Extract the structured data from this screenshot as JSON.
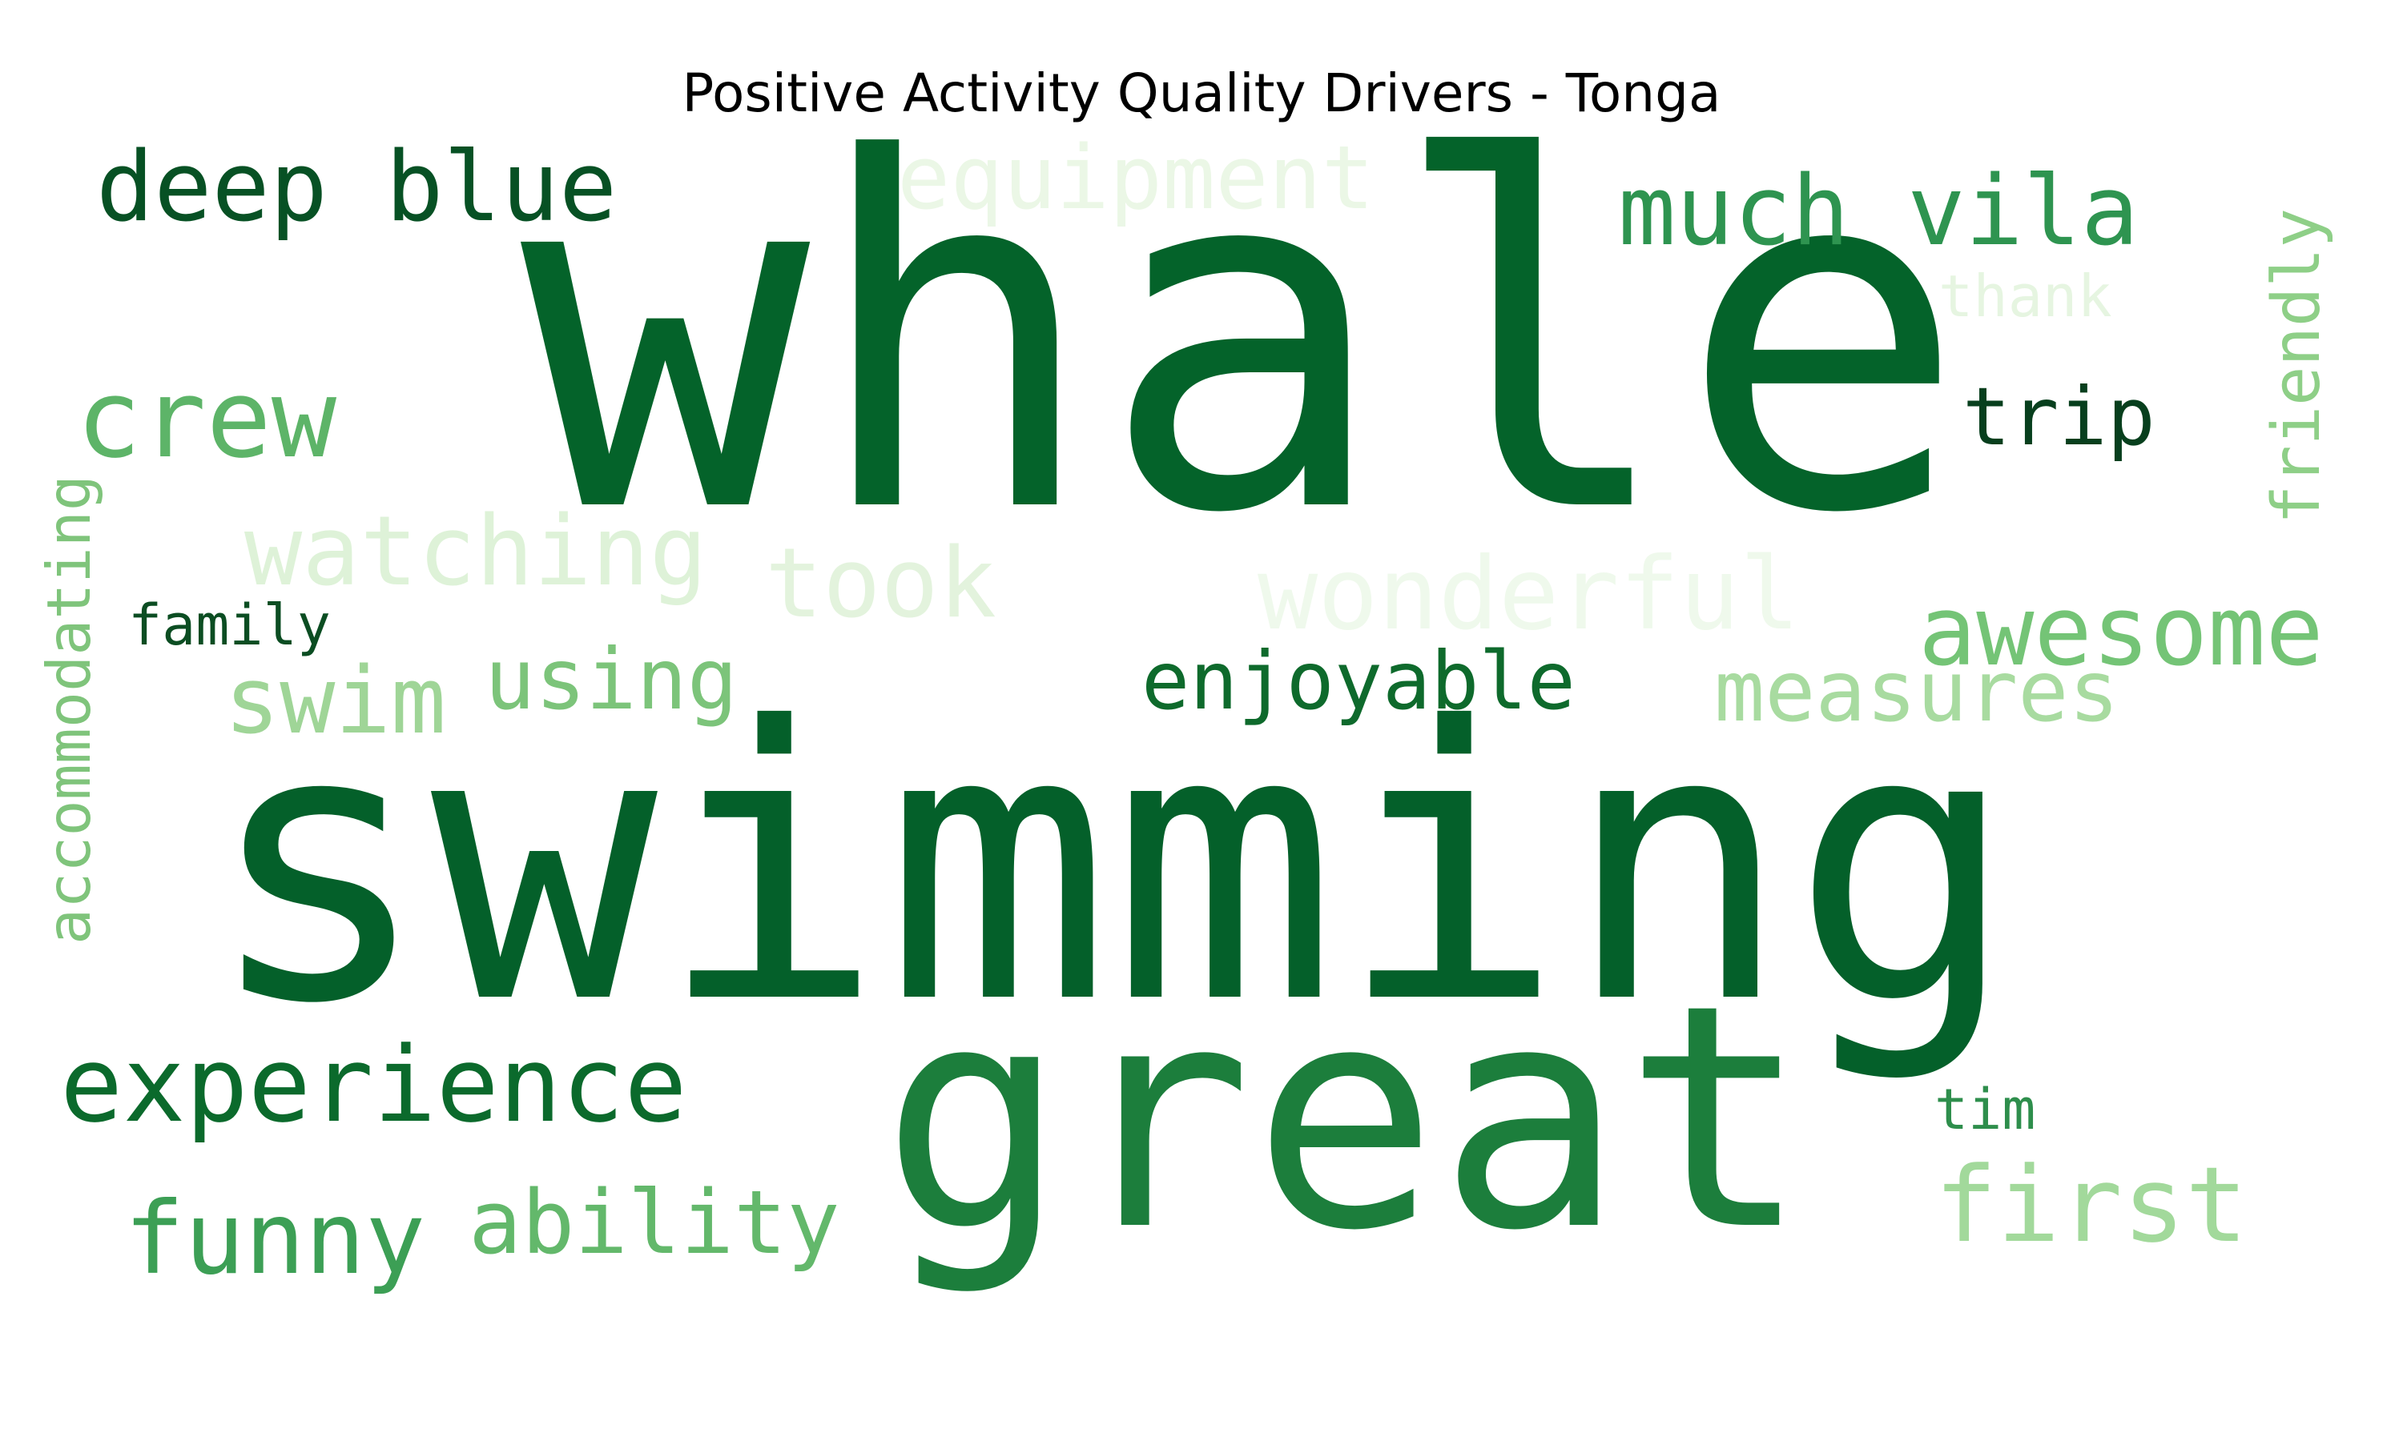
{
  "title": "Positive Activity Quality Drivers - Tonga",
  "words": [
    {
      "text": "whale",
      "color": "#04632a"
    },
    {
      "text": "swimming",
      "color": "#04602a"
    },
    {
      "text": "great",
      "color": "#1c7e3c"
    },
    {
      "text": "deep blue",
      "color": "#075124"
    },
    {
      "text": "equipment",
      "color": "#ebf7e6"
    },
    {
      "text": "much vila",
      "color": "#2e9450"
    },
    {
      "text": "thank",
      "color": "#e6f5e1"
    },
    {
      "text": "friendly",
      "color": "#8ecf87"
    },
    {
      "text": "crew",
      "color": "#5db468"
    },
    {
      "text": "trip",
      "color": "#073f1d"
    },
    {
      "text": "watching",
      "color": "#def2d8"
    },
    {
      "text": "took",
      "color": "#e3f3dd"
    },
    {
      "text": "wonderful",
      "color": "#eff9ec"
    },
    {
      "text": "accommodating",
      "color": "#7fc47b"
    },
    {
      "text": "family",
      "color": "#0b4d22"
    },
    {
      "text": "awesome",
      "color": "#74c476"
    },
    {
      "text": "swim",
      "color": "#9fd597"
    },
    {
      "text": "using",
      "color": "#7cc47a"
    },
    {
      "text": "enjoyable",
      "color": "#0e6a2c"
    },
    {
      "text": "measures",
      "color": "#a8dba0"
    },
    {
      "text": "experience",
      "color": "#0b6a2c"
    },
    {
      "text": "tim",
      "color": "#2e8e4c"
    },
    {
      "text": "first",
      "color": "#a2d99b"
    },
    {
      "text": "funny",
      "color": "#3c9f55"
    },
    {
      "text": "ability",
      "color": "#63b86b"
    }
  ]
}
